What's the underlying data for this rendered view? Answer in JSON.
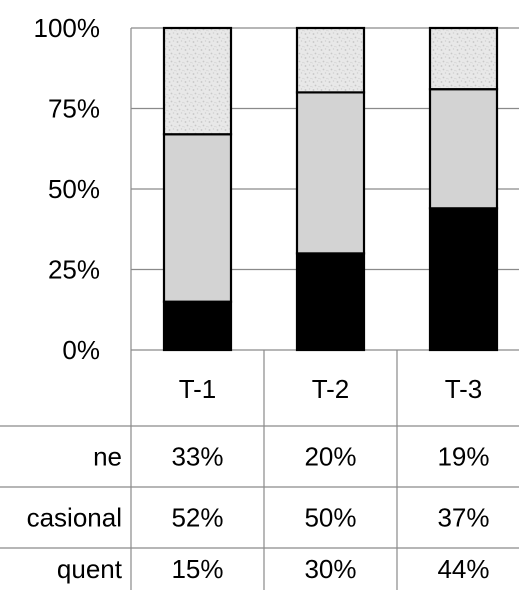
{
  "chart_data": {
    "type": "bar",
    "stacked": true,
    "percent_stacked": true,
    "categories": [
      "T-1",
      "T-2",
      "T-3"
    ],
    "ylim": [
      0,
      100
    ],
    "yticks": [
      "0%",
      "25%",
      "50%",
      "75%",
      "100%"
    ],
    "grid": true,
    "series": [
      {
        "name": "ne",
        "values": [
          33,
          20,
          19
        ],
        "labels": [
          "33%",
          "20%",
          "19%"
        ],
        "color": "#e6e6e6",
        "pattern": "speckled-light-gray"
      },
      {
        "name": "casional",
        "values": [
          52,
          50,
          37
        ],
        "labels": [
          "52%",
          "50%",
          "37%"
        ],
        "color": "#d3d3d3"
      },
      {
        "name": "quent",
        "values": [
          15,
          30,
          44
        ],
        "labels": [
          "15%",
          "30%",
          "44%"
        ],
        "color": "#000000"
      }
    ]
  }
}
